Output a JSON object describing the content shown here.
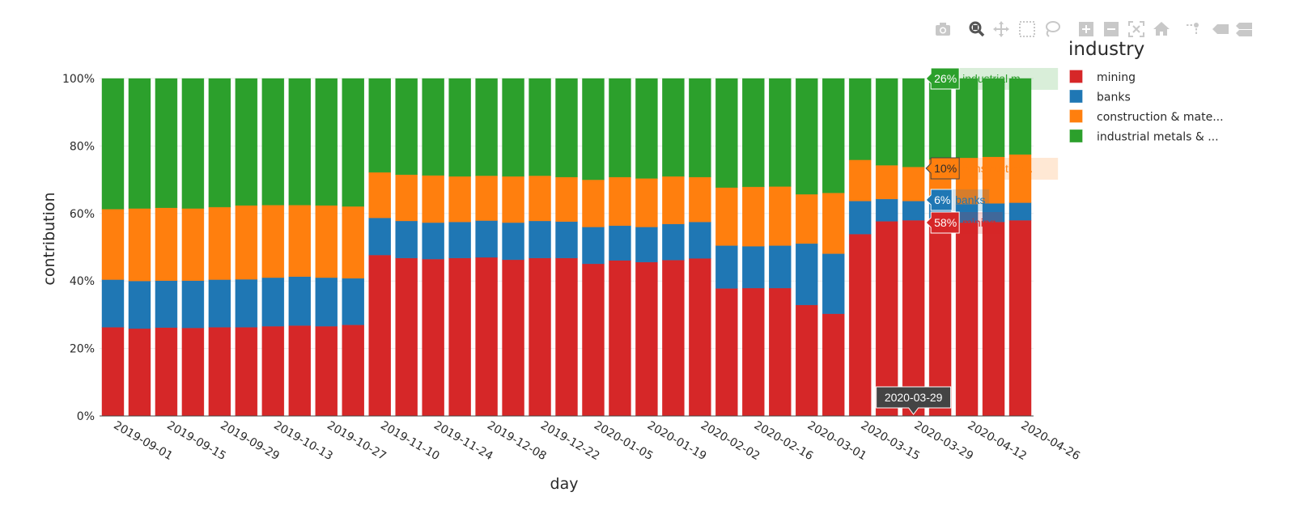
{
  "toolbar": {
    "icons": [
      "camera-icon",
      "zoom-icon",
      "pan-icon",
      "box-select-icon",
      "lasso-select-icon",
      "zoom-in-icon",
      "zoom-out-icon",
      "autoscale-icon",
      "home-icon",
      "spike-lines-icon",
      "hover-closest-icon",
      "hover-compare-icon"
    ],
    "active": "zoom-icon"
  },
  "chart_data": {
    "type": "bar",
    "barmode": "stack",
    "xlabel": "day",
    "ylabel": "contribution",
    "ylim": [
      0,
      100
    ],
    "y_ticks": [
      "0%",
      "20%",
      "40%",
      "60%",
      "80%",
      "100%"
    ],
    "y_tick_values": [
      0,
      20,
      40,
      60,
      80,
      100
    ],
    "grid": true,
    "x": [
      "2019-09-01",
      "2019-09-08",
      "2019-09-15",
      "2019-09-22",
      "2019-09-29",
      "2019-10-06",
      "2019-10-13",
      "2019-10-20",
      "2019-10-27",
      "2019-11-03",
      "2019-11-10",
      "2019-11-17",
      "2019-11-24",
      "2019-12-01",
      "2019-12-08",
      "2019-12-15",
      "2019-12-22",
      "2019-12-29",
      "2020-01-05",
      "2020-01-12",
      "2020-01-19",
      "2020-01-26",
      "2020-02-02",
      "2020-02-09",
      "2020-02-16",
      "2020-02-23",
      "2020-03-01",
      "2020-03-08",
      "2020-03-15",
      "2020-03-22",
      "2020-03-29",
      "2020-04-05",
      "2020-04-12",
      "2020-04-19",
      "2020-04-26"
    ],
    "x_ticks": [
      "2019-09-01",
      "2019-09-15",
      "2019-09-29",
      "2019-10-13",
      "2019-10-27",
      "2019-11-10",
      "2019-11-24",
      "2019-12-08",
      "2019-12-22",
      "2020-01-05",
      "2020-01-19",
      "2020-02-02",
      "2020-02-16",
      "2020-03-01",
      "2020-03-15",
      "2020-03-29",
      "2020-04-12",
      "2020-04-26"
    ],
    "legend": {
      "title": "industry",
      "placement": "right"
    },
    "series": [
      {
        "name": "mining",
        "legend_label": "mining",
        "color": "#d62728",
        "values": [
          26.3,
          25.9,
          26.2,
          26.1,
          26.3,
          26.3,
          26.6,
          26.8,
          26.6,
          27.0,
          47.7,
          46.8,
          46.5,
          46.8,
          47.0,
          46.3,
          46.8,
          46.8,
          45.1,
          46.1,
          45.6,
          46.2,
          46.7,
          37.8,
          37.9,
          37.9,
          32.9,
          30.3,
          53.9,
          57.7,
          58.0,
          57.5,
          57.3,
          57.5,
          58.0
        ]
      },
      {
        "name": "banks",
        "legend_label": "banks",
        "color": "#1f77b4",
        "values": [
          14.1,
          14.1,
          13.9,
          14.0,
          14.1,
          14.2,
          14.4,
          14.5,
          14.4,
          13.8,
          11.0,
          11.0,
          10.8,
          10.7,
          10.9,
          11.0,
          11.0,
          10.8,
          10.9,
          10.3,
          10.4,
          10.7,
          10.8,
          12.7,
          12.4,
          12.6,
          18.2,
          17.8,
          9.8,
          6.6,
          5.7,
          5.5,
          5.5,
          5.5,
          5.2
        ]
      },
      {
        "name": "construction & materials",
        "legend_label": "construction & mate...",
        "color": "#ff7f0e",
        "values": [
          20.9,
          21.5,
          21.6,
          21.4,
          21.5,
          21.9,
          21.5,
          21.2,
          21.4,
          21.3,
          13.5,
          13.7,
          14.0,
          13.5,
          13.3,
          13.7,
          13.4,
          13.2,
          14.0,
          14.4,
          14.4,
          14.1,
          13.3,
          17.2,
          17.6,
          17.5,
          14.6,
          18.0,
          12.2,
          10.0,
          10.1,
          13.0,
          13.7,
          13.8,
          14.3
        ]
      },
      {
        "name": "industrial metals & mining",
        "legend_label": "industrial metals & ...",
        "color": "#2ca02c",
        "values": [
          38.7,
          38.5,
          38.3,
          38.5,
          38.1,
          37.6,
          37.5,
          37.5,
          37.6,
          37.9,
          27.8,
          28.5,
          28.7,
          29.0,
          28.8,
          29.0,
          28.8,
          29.2,
          30.0,
          29.2,
          29.6,
          29.0,
          29.2,
          32.3,
          32.1,
          32.0,
          34.3,
          33.9,
          24.1,
          25.7,
          26.2,
          24.0,
          23.5,
          23.2,
          22.5
        ]
      }
    ],
    "hover": {
      "x": "2020-03-29",
      "labels": [
        {
          "value": "26%",
          "name": "industrial m...",
          "color": "#2ca02c",
          "text_color": "#ffffff"
        },
        {
          "value": "10%",
          "name": "construction...",
          "color": "#ff7f0e",
          "text_color": "#2a2a2a"
        },
        {
          "value": "6%",
          "name": "banks",
          "color": "#1f77b4",
          "text_color": "#ffffff"
        },
        {
          "value": "58%",
          "name": "mining",
          "color": "#d62728",
          "text_color": "#ffffff"
        }
      ]
    }
  }
}
